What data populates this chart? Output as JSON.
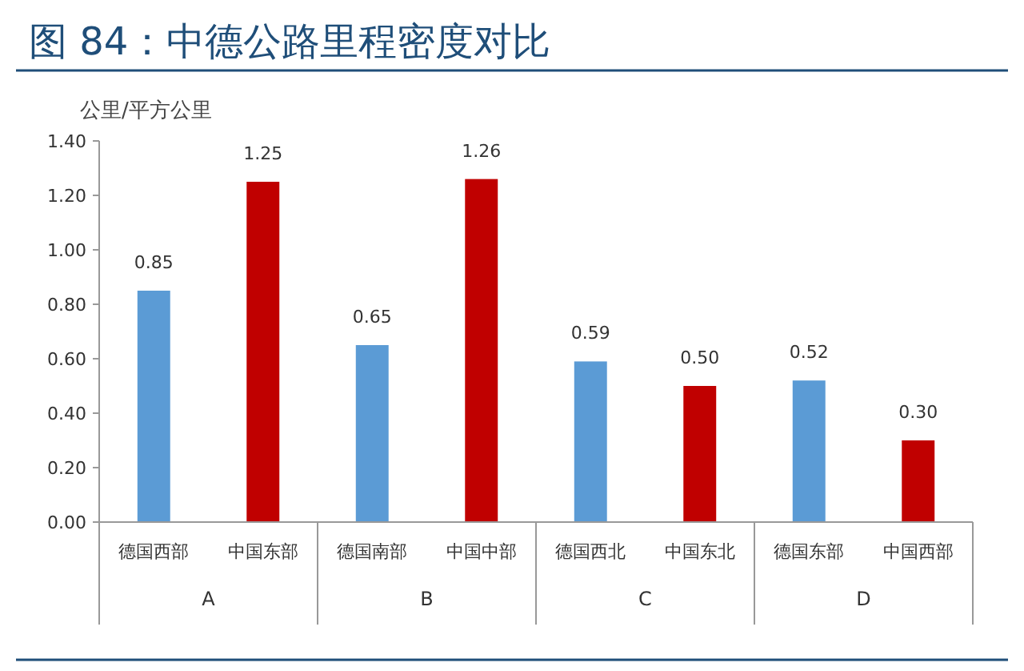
{
  "chart_data": {
    "type": "bar",
    "title": "图 84：中德公路里程密度对比",
    "ylabel": "公里/平方公里",
    "categories": [
      "德国西部",
      "中国东部",
      "德国南部",
      "中国中部",
      "德国西北",
      "中国东北",
      "德国东部",
      "中国西部"
    ],
    "values": [
      0.85,
      1.25,
      0.65,
      1.26,
      0.59,
      0.5,
      0.52,
      0.3
    ],
    "colors": [
      "#5b9bd5",
      "#c00000",
      "#5b9bd5",
      "#c00000",
      "#5b9bd5",
      "#c00000",
      "#5b9bd5",
      "#c00000"
    ],
    "annotations": [
      "A",
      "B",
      "C",
      "D"
    ],
    "ylim": [
      0,
      1.4
    ],
    "yticks": [
      {
        "value": 0,
        "label": "0.00"
      },
      {
        "value": 0.2,
        "label": "0.20"
      },
      {
        "value": 0.4,
        "label": "0.40"
      },
      {
        "value": 0.6,
        "label": "0.60"
      },
      {
        "value": 0.8,
        "label": "0.80"
      },
      {
        "value": 1,
        "label": "1.00"
      },
      {
        "value": 1.2,
        "label": "1.20"
      },
      {
        "value": 1.4,
        "label": "1.40"
      }
    ],
    "value_labels": [
      "0.85",
      "1.25",
      "0.65",
      "1.26",
      "0.59",
      "0.50",
      "0.52",
      "0.30"
    ]
  }
}
